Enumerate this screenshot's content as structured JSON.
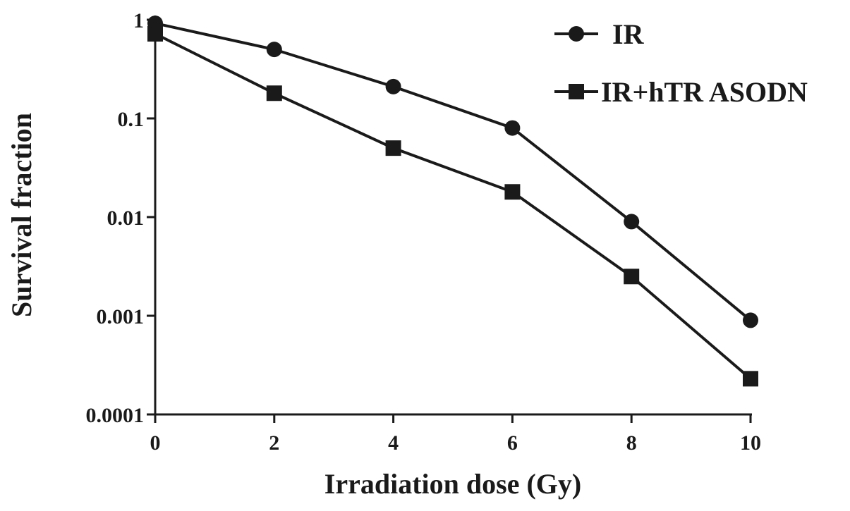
{
  "chart_data": {
    "type": "line",
    "x": [
      0,
      2,
      4,
      6,
      8,
      10
    ],
    "xlabel": "Irradiation dose (Gy)",
    "ylabel": "Survival fraction",
    "xlim": [
      0,
      10
    ],
    "ylim": [
      0.0001,
      1
    ],
    "yscale": "log",
    "grid": false,
    "legend_position": "top-right",
    "x_ticks": [
      "0",
      "2",
      "4",
      "6",
      "8",
      "10"
    ],
    "y_ticks": [
      "0.0001",
      "0.001",
      "0.01",
      "0.1",
      "1"
    ],
    "series": [
      {
        "name": "IR",
        "marker": "circle",
        "values": [
          0.92,
          0.5,
          0.21,
          0.08,
          0.009,
          0.0009
        ]
      },
      {
        "name": "IR+hTR ASODN",
        "marker": "square",
        "values": [
          0.72,
          0.18,
          0.05,
          0.018,
          0.0025,
          0.00023
        ]
      }
    ],
    "colors": {
      "line": "#1a1a1a",
      "background": "#ffffff"
    }
  }
}
